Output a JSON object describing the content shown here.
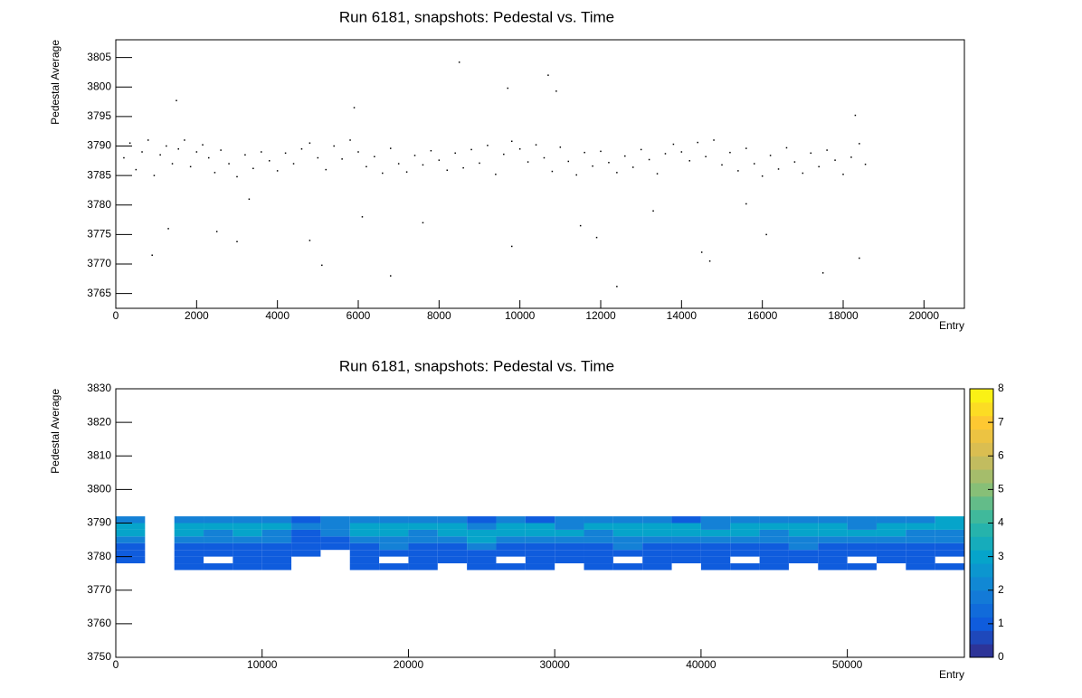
{
  "chart_data": [
    {
      "type": "scatter",
      "title": "Run 6181, snapshots: Pedestal vs. Time",
      "xlabel": "Entry",
      "ylabel": "Pedestal Average",
      "color": "#000000",
      "x": [
        200,
        350,
        500,
        650,
        800,
        950,
        1100,
        1250,
        1400,
        1550,
        1700,
        1850,
        2000,
        2150,
        2300,
        2450,
        2600,
        2800,
        3000,
        3200,
        3400,
        3600,
        3800,
        4000,
        4200,
        4400,
        4600,
        4800,
        5000,
        5200,
        5400,
        5600,
        5800,
        6000,
        6200,
        6400,
        6600,
        6800,
        7000,
        7200,
        7400,
        7600,
        7800,
        8000,
        8200,
        8400,
        8600,
        8800,
        9000,
        9200,
        9400,
        9600,
        9800,
        10000,
        10200,
        10400,
        10600,
        10800,
        11000,
        11200,
        11400,
        11600,
        11800,
        12000,
        12200,
        12400,
        12600,
        12800,
        13000,
        13200,
        13400,
        13600,
        13800,
        14000,
        14200,
        14400,
        14600,
        14800,
        15000,
        15200,
        15400,
        15600,
        15800,
        16000,
        16200,
        16400,
        16600,
        16800,
        17000,
        17200,
        17400,
        17600,
        17800,
        18000,
        18200,
        18400,
        18550,
        900,
        1300,
        2500,
        3300,
        4800,
        5100,
        6100,
        6800,
        7600,
        8500,
        9700,
        9800,
        10700,
        10900,
        11500,
        12400,
        13300,
        14500,
        14700,
        16100,
        17500,
        18300,
        18400,
        1500,
        5900,
        3000,
        15600,
        11900
      ],
      "y": [
        3788,
        3790.5,
        3786,
        3789,
        3791,
        3785,
        3788.5,
        3790,
        3787,
        3789.5,
        3791,
        3786.5,
        3789,
        3790.2,
        3788,
        3785.5,
        3789.3,
        3787,
        3784.8,
        3788.5,
        3786.2,
        3789,
        3787.5,
        3785.8,
        3788.8,
        3787,
        3789.5,
        3790.5,
        3788,
        3786,
        3790,
        3787.8,
        3791,
        3789,
        3786.5,
        3788.2,
        3785.4,
        3789.6,
        3787,
        3785.6,
        3788.4,
        3786.8,
        3789.2,
        3787.6,
        3785.9,
        3788.8,
        3786.3,
        3789.4,
        3787.1,
        3790.1,
        3785.2,
        3788.6,
        3790.8,
        3789.5,
        3787.3,
        3790.2,
        3788,
        3785.7,
        3789.8,
        3787.4,
        3785.1,
        3788.9,
        3786.6,
        3789.1,
        3787.2,
        3785.5,
        3788.3,
        3786.4,
        3789.4,
        3787.7,
        3785.3,
        3788.7,
        3790.3,
        3789,
        3787.5,
        3790.6,
        3788.2,
        3791,
        3786.8,
        3788.9,
        3785.8,
        3789.6,
        3787,
        3784.9,
        3788.4,
        3786.1,
        3789.7,
        3787.3,
        3785.4,
        3788.8,
        3786.5,
        3789.3,
        3787.6,
        3785.2,
        3788.1,
        3790.4,
        3786.9,
        3771.5,
        3776,
        3775.5,
        3781,
        3774,
        3769.8,
        3778,
        3768,
        3777,
        3804.2,
        3799.8,
        3773,
        3802,
        3799.3,
        3776.5,
        3766.2,
        3779,
        3772,
        3770.5,
        3775,
        3768.5,
        3795.2,
        3771,
        3797.7,
        3796.5,
        3773.8,
        3780.2,
        3774.5
      ],
      "xlim": [
        0,
        21000
      ],
      "xticks": [
        0,
        2000,
        4000,
        6000,
        8000,
        10000,
        12000,
        14000,
        16000,
        18000,
        20000
      ],
      "ylim": [
        3762.5,
        3808
      ],
      "yticks": [
        3765,
        3770,
        3775,
        3780,
        3785,
        3790,
        3795,
        3800,
        3805
      ]
    },
    {
      "type": "heatmap",
      "title": "Run 6181, snapshots: Pedestal vs. Time",
      "xlabel": "Entry",
      "ylabel": "Pedestal Average",
      "x_edges": [
        0,
        2000,
        4000,
        6000,
        8000,
        10000,
        12000,
        14000,
        16000,
        18000,
        20000,
        22000,
        24000,
        26000,
        28000,
        30000,
        32000,
        34000,
        36000,
        38000,
        40000,
        42000,
        44000,
        46000,
        48000,
        50000,
        52000,
        54000,
        56000,
        58000
      ],
      "y_edges": [
        3776,
        3778,
        3780,
        3782,
        3784,
        3786,
        3788,
        3790,
        3792,
        3794
      ],
      "z": [
        [
          0,
          1,
          1,
          1,
          2,
          3,
          3,
          2,
          0
        ],
        [
          0,
          0,
          0,
          0,
          0,
          0,
          0,
          0,
          0
        ],
        [
          1,
          1,
          1,
          1,
          2,
          3,
          3,
          2,
          0
        ],
        [
          1,
          0,
          1,
          1,
          2,
          2,
          3,
          2,
          0
        ],
        [
          1,
          1,
          1,
          1,
          2,
          3,
          3,
          2,
          0
        ],
        [
          1,
          1,
          1,
          1,
          2,
          2,
          3,
          2,
          0
        ],
        [
          0,
          0,
          1,
          1,
          1,
          1,
          2,
          1,
          0
        ],
        [
          0,
          0,
          0,
          1,
          1,
          2,
          2,
          2,
          0
        ],
        [
          1,
          1,
          1,
          1,
          2,
          3,
          3,
          2,
          0
        ],
        [
          1,
          0,
          1,
          2,
          2,
          3,
          3,
          2,
          0
        ],
        [
          1,
          1,
          1,
          1,
          2,
          2,
          3,
          2,
          0
        ],
        [
          0,
          1,
          1,
          1,
          2,
          3,
          3,
          2,
          0
        ],
        [
          1,
          1,
          1,
          2,
          3,
          3,
          2,
          1,
          0
        ],
        [
          1,
          0,
          1,
          1,
          2,
          3,
          3,
          2,
          0
        ],
        [
          1,
          1,
          1,
          1,
          2,
          3,
          3,
          1,
          0
        ],
        [
          0,
          1,
          1,
          1,
          2,
          3,
          2,
          2,
          0
        ],
        [
          1,
          1,
          1,
          1,
          2,
          2,
          3,
          2,
          0
        ],
        [
          1,
          0,
          1,
          2,
          2,
          3,
          3,
          2,
          0
        ],
        [
          1,
          1,
          1,
          1,
          2,
          3,
          3,
          2,
          0
        ],
        [
          0,
          1,
          1,
          1,
          2,
          3,
          3,
          1,
          0
        ],
        [
          1,
          1,
          1,
          1,
          2,
          3,
          2,
          2,
          0
        ],
        [
          1,
          0,
          1,
          1,
          2,
          3,
          3,
          2,
          0
        ],
        [
          1,
          1,
          1,
          1,
          2,
          2,
          3,
          2,
          0
        ],
        [
          0,
          1,
          1,
          2,
          2,
          3,
          3,
          2,
          0
        ],
        [
          1,
          1,
          1,
          1,
          2,
          3,
          3,
          2,
          0
        ],
        [
          1,
          0,
          1,
          1,
          2,
          3,
          2,
          2,
          0
        ],
        [
          0,
          1,
          1,
          1,
          2,
          3,
          3,
          2,
          0
        ],
        [
          1,
          1,
          1,
          1,
          2,
          2,
          3,
          2,
          0
        ],
        [
          1,
          0,
          1,
          1,
          2,
          2,
          3,
          3,
          0
        ]
      ],
      "xlim": [
        0,
        58000
      ],
      "xticks": [
        0,
        10000,
        20000,
        30000,
        40000,
        50000
      ],
      "ylim": [
        3750,
        3830
      ],
      "yticks": [
        3750,
        3760,
        3770,
        3780,
        3790,
        3800,
        3810,
        3820,
        3830
      ],
      "zlim": [
        0,
        8
      ],
      "zticks": [
        0,
        1,
        2,
        3,
        4,
        5,
        6,
        7,
        8
      ],
      "palette": [
        "#352a87",
        "#0f5cdd",
        "#1481d6",
        "#06a4ca",
        "#2eb7a4",
        "#87bf77",
        "#d1bb59",
        "#fec832",
        "#f9fb0e"
      ]
    }
  ]
}
